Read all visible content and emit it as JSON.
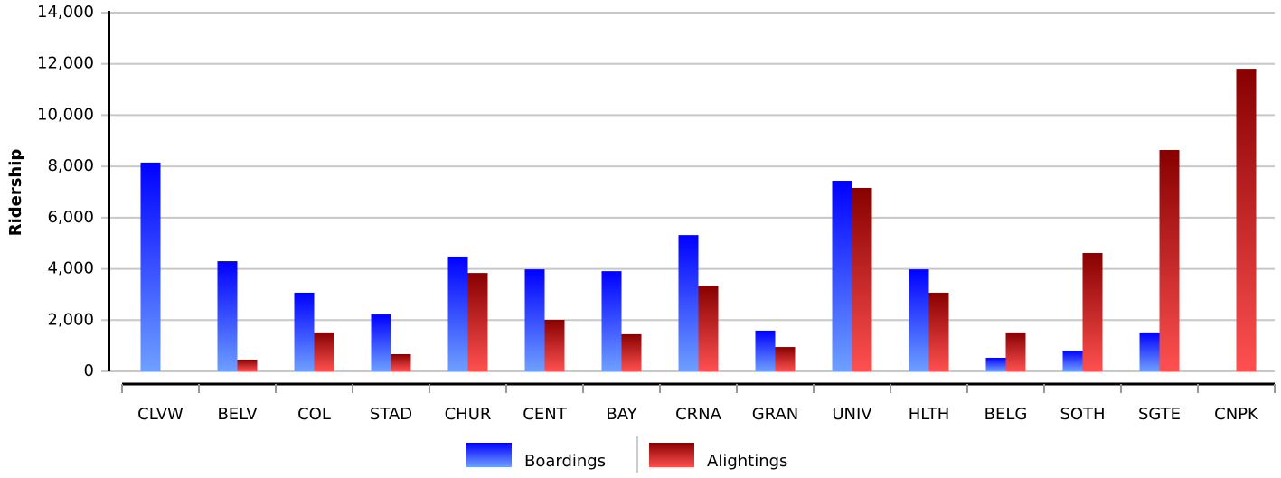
{
  "chart_data": {
    "type": "bar",
    "y_label": "Ridership",
    "categories": [
      "CLVW",
      "BELV",
      "COL",
      "STAD",
      "CHUR",
      "CENT",
      "BAY",
      "CRNA",
      "GRAN",
      "UNIV",
      "HLTH",
      "BELG",
      "SOTH",
      "SGTE",
      "CNPK"
    ],
    "series": [
      {
        "name": "Boardings",
        "color": "#0000ff",
        "values": [
          8150,
          4300,
          3070,
          2220,
          4480,
          3980,
          3910,
          5320,
          1590,
          7440,
          3980,
          530,
          810,
          1520,
          0
        ]
      },
      {
        "name": "Alightings",
        "color": "#880000",
        "values": [
          0,
          460,
          1520,
          670,
          3840,
          2010,
          1450,
          3350,
          950,
          7160,
          3070,
          1520,
          4620,
          8640,
          11810
        ]
      }
    ],
    "ylim": [
      0,
      14000
    ],
    "yticks": [
      0,
      {
        "value": 2000,
        "label": "2,000"
      },
      {
        "value": 4000,
        "label": "4,000"
      },
      {
        "value": 6000,
        "label": "6,000"
      },
      {
        "value": 8000,
        "label": "8,000"
      },
      {
        "value": 10000,
        "label": "10,000"
      },
      {
        "value": 12000,
        "label": "12,000"
      },
      {
        "value": 14000,
        "label": "14,000"
      }
    ],
    "grid": true
  }
}
